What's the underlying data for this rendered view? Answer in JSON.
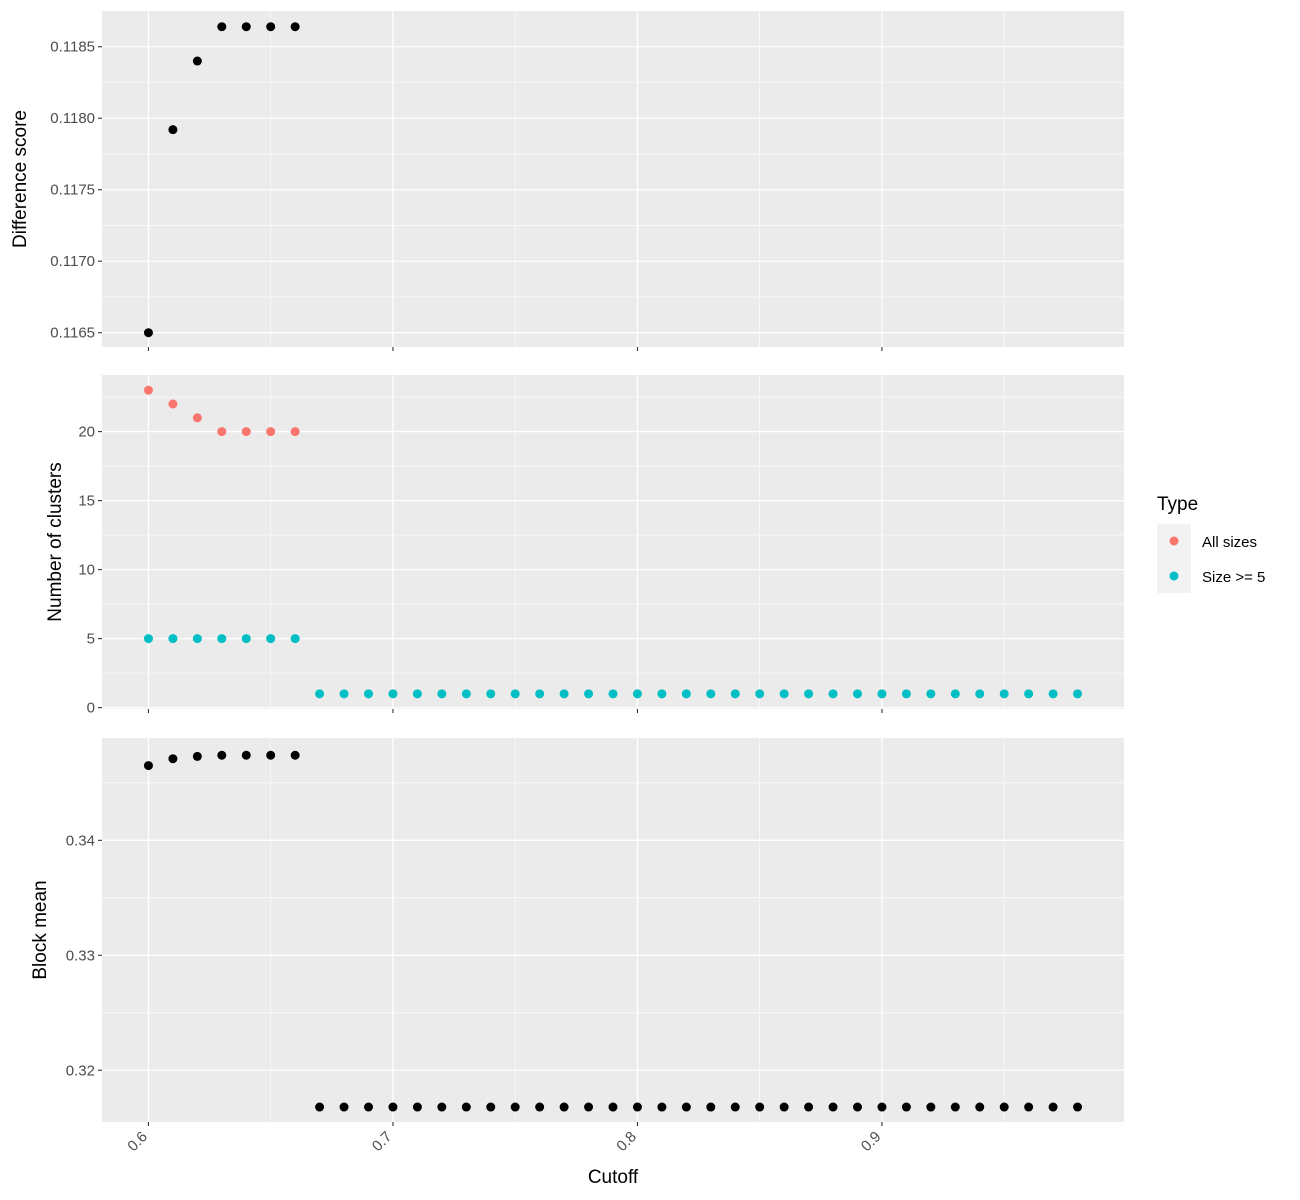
{
  "chart_data": [
    {
      "type": "scatter",
      "title": "",
      "xlabel": "",
      "ylabel": "Difference score",
      "xlim": [
        0.581,
        0.999
      ],
      "ylim": [
        0.1164,
        0.11875
      ],
      "yticks": [
        0.1165,
        0.117,
        0.1175,
        0.118,
        0.1185
      ],
      "ytick_labels": [
        "0.1165",
        "0.1170",
        "0.1175",
        "0.1180",
        "0.1185"
      ],
      "series": [
        {
          "color": "#000000",
          "x": [
            0.6,
            0.61,
            0.62,
            0.63,
            0.64,
            0.65,
            0.66
          ],
          "y": [
            0.1165,
            0.11792,
            0.1184,
            0.11864,
            0.11864,
            0.11864,
            0.11864
          ]
        }
      ]
    },
    {
      "type": "scatter",
      "title": "",
      "xlabel": "",
      "ylabel": "Number of clusters",
      "xlim": [
        0.581,
        0.999
      ],
      "ylim": [
        -0.1,
        24.1
      ],
      "yticks": [
        0,
        5,
        10,
        15,
        20
      ],
      "ytick_labels": [
        "0",
        "5",
        "10",
        "15",
        "20"
      ],
      "legend": {
        "title": "Type",
        "position": "right",
        "entries": [
          "All sizes",
          "Size >= 5"
        ]
      },
      "series": [
        {
          "name": "All sizes",
          "color": "#F8766D",
          "x": [
            0.6,
            0.61,
            0.62,
            0.63,
            0.64,
            0.65,
            0.66
          ],
          "y": [
            23,
            22,
            21,
            20,
            20,
            20,
            20
          ]
        },
        {
          "name": "Size >= 5",
          "color": "#00BFC4",
          "x": [
            0.6,
            0.61,
            0.62,
            0.63,
            0.64,
            0.65,
            0.66,
            0.67,
            0.68,
            0.69,
            0.7,
            0.71,
            0.72,
            0.73,
            0.74,
            0.75,
            0.76,
            0.77,
            0.78,
            0.79,
            0.8,
            0.81,
            0.82,
            0.83,
            0.84,
            0.85,
            0.86,
            0.87,
            0.88,
            0.89,
            0.9,
            0.91,
            0.92,
            0.93,
            0.94,
            0.95,
            0.96,
            0.97,
            0.98
          ],
          "y": [
            5,
            5,
            5,
            5,
            5,
            5,
            5,
            1,
            1,
            1,
            1,
            1,
            1,
            1,
            1,
            1,
            1,
            1,
            1,
            1,
            1,
            1,
            1,
            1,
            1,
            1,
            1,
            1,
            1,
            1,
            1,
            1,
            1,
            1,
            1,
            1,
            1,
            1,
            1
          ]
        }
      ]
    },
    {
      "type": "scatter",
      "title": "",
      "xlabel": "Cutoff",
      "ylabel": "Block mean",
      "xlim": [
        0.581,
        0.999
      ],
      "ylim": [
        0.3155,
        0.3489
      ],
      "yticks": [
        0.32,
        0.33,
        0.34
      ],
      "ytick_labels": [
        "0.32",
        "0.33",
        "0.34"
      ],
      "xticks": [
        0.6,
        0.7,
        0.8,
        0.9
      ],
      "xtick_labels": [
        "0.6",
        "0.7",
        "0.8",
        "0.9"
      ],
      "series": [
        {
          "color": "#000000",
          "x": [
            0.6,
            0.61,
            0.62,
            0.63,
            0.64,
            0.65,
            0.66,
            0.67,
            0.68,
            0.69,
            0.7,
            0.71,
            0.72,
            0.73,
            0.74,
            0.75,
            0.76,
            0.77,
            0.78,
            0.79,
            0.8,
            0.81,
            0.82,
            0.83,
            0.84,
            0.85,
            0.86,
            0.87,
            0.88,
            0.89,
            0.9,
            0.91,
            0.92,
            0.93,
            0.94,
            0.95,
            0.96,
            0.97,
            0.98
          ],
          "y": [
            0.3465,
            0.3471,
            0.3473,
            0.3474,
            0.3474,
            0.3474,
            0.3474,
            0.3168,
            0.3168,
            0.3168,
            0.3168,
            0.3168,
            0.3168,
            0.3168,
            0.3168,
            0.3168,
            0.3168,
            0.3168,
            0.3168,
            0.3168,
            0.3168,
            0.3168,
            0.3168,
            0.3168,
            0.3168,
            0.3168,
            0.3168,
            0.3168,
            0.3168,
            0.3168,
            0.3168,
            0.3168,
            0.3168,
            0.3168,
            0.3168,
            0.3168,
            0.3168,
            0.3168,
            0.3168
          ]
        }
      ]
    }
  ],
  "panel_background": "#EBEBEB",
  "grid_color": "#FFFFFF"
}
